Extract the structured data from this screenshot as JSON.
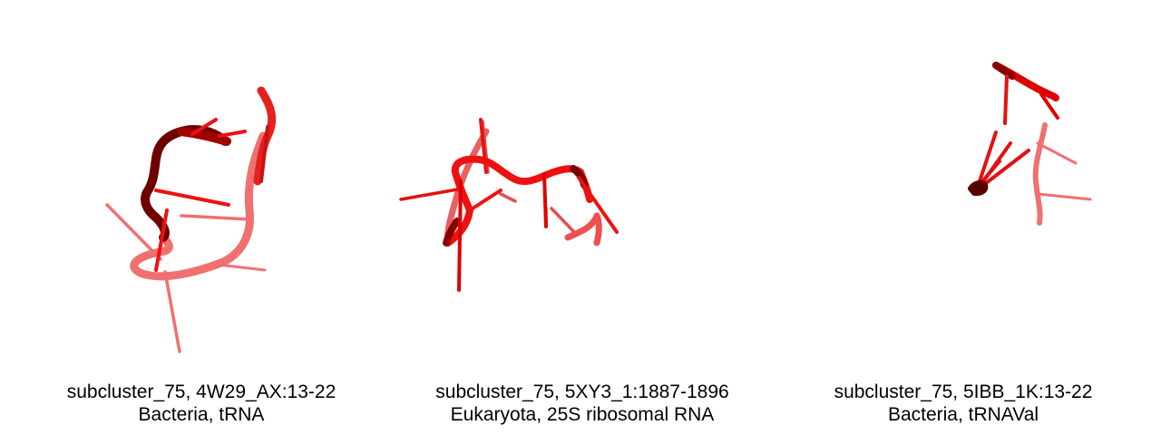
{
  "colors": {
    "background": "#ffffff",
    "dark": "#6e0000",
    "mid": "#e00000",
    "bright": "#ff1a1a",
    "light": "#f07070",
    "caption_text": "#000000"
  },
  "panels": [
    {
      "title": "subcluster_75, 4W29_AX:13-22",
      "subtitle": "Bacteria, tRNA"
    },
    {
      "title": "subcluster_75, 5XY3_1:1887-1896",
      "subtitle": "Eukaryota, 25S ribosomal RNA"
    },
    {
      "title": "subcluster_75, 5IBB_1K:13-22",
      "subtitle": "Bacteria, tRNAVal"
    }
  ]
}
